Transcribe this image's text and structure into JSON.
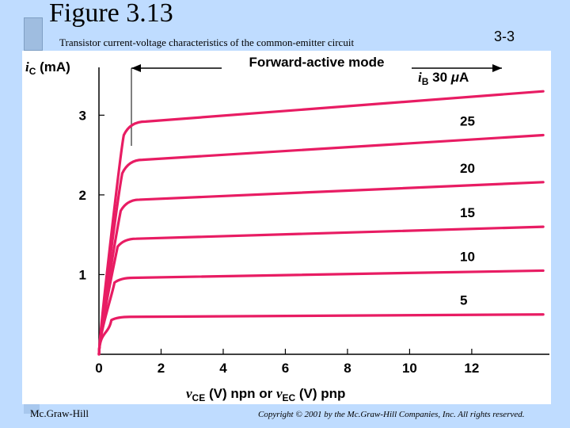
{
  "slide": {
    "title": "Figure 3.13",
    "subtitle": "Transistor current-voltage characteristics of the common-emitter circuit",
    "page_number": "3-3",
    "footer_left": "Mc.Graw-Hill",
    "footer_right": "Copyright © 2001 by the Mc.Graw-Hill Companies, Inc. All rights reserved."
  },
  "chart_data": {
    "type": "line",
    "title": "",
    "mode_label": "Forward-active mode",
    "ylabel": "iC (mA)",
    "xlabel": "vCE (V) npn or vEC (V) pnp",
    "xlim": [
      0,
      14.5
    ],
    "ylim": [
      0,
      3.6
    ],
    "xticks": [
      "0",
      "2",
      "4",
      "6",
      "8",
      "10",
      "12"
    ],
    "yticks": [
      "1",
      "2",
      "3"
    ],
    "xtick_values": [
      0,
      2,
      4,
      6,
      8,
      10,
      12
    ],
    "ytick_values": [
      1,
      2,
      3
    ],
    "series": [
      {
        "name": "iB 30 μA",
        "points": [
          [
            0,
            0
          ],
          [
            0.8,
            2.75
          ],
          [
            1.5,
            2.92
          ],
          [
            14.3,
            3.3
          ]
        ]
      },
      {
        "name": "25",
        "points": [
          [
            0,
            0
          ],
          [
            0.75,
            2.27
          ],
          [
            1.4,
            2.44
          ],
          [
            14.3,
            2.75
          ]
        ]
      },
      {
        "name": "20",
        "points": [
          [
            0,
            0
          ],
          [
            0.7,
            1.8
          ],
          [
            1.3,
            1.94
          ],
          [
            14.3,
            2.16
          ]
        ]
      },
      {
        "name": "15",
        "points": [
          [
            0,
            0
          ],
          [
            0.6,
            1.35
          ],
          [
            1.2,
            1.45
          ],
          [
            14.3,
            1.6
          ]
        ]
      },
      {
        "name": "10",
        "points": [
          [
            0,
            0
          ],
          [
            0.5,
            0.9
          ],
          [
            1.1,
            0.96
          ],
          [
            14.3,
            1.05
          ]
        ]
      },
      {
        "name": "5",
        "points": [
          [
            0,
            0
          ],
          [
            0.4,
            0.43
          ],
          [
            1.0,
            0.47
          ],
          [
            14.3,
            0.5
          ]
        ]
      }
    ],
    "curve_color": "#e81c63",
    "grid": false
  }
}
